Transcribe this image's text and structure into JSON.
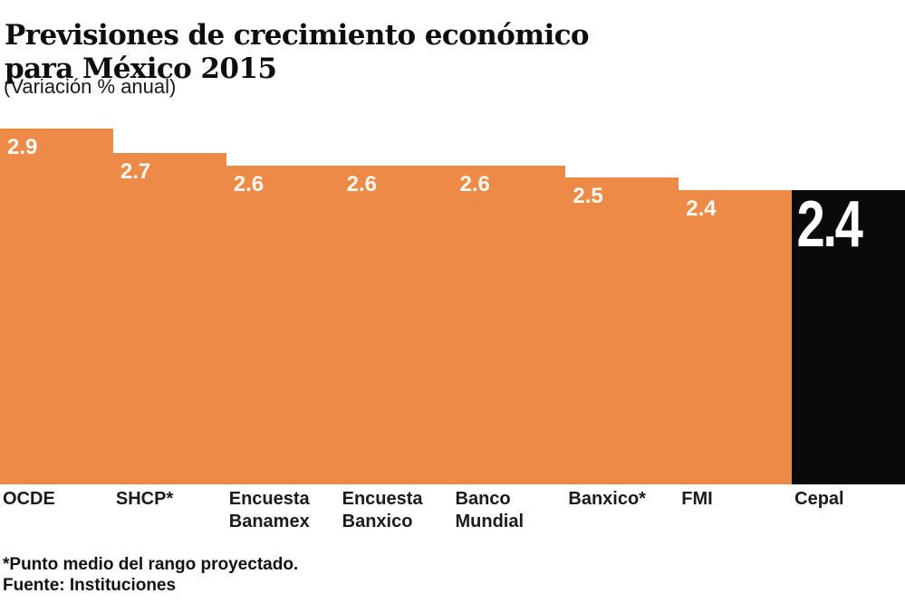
{
  "title": {
    "line1": "Previsiones de crecimiento económico",
    "line2": "para México 2015"
  },
  "subtitle": "(Variación % anual)",
  "chart_data": {
    "type": "bar",
    "title": "Previsiones de crecimiento económico para México 2015",
    "subtitle": "(Variación % anual)",
    "categories": [
      "OCDE",
      "SHCP*",
      "Encuesta Banamex",
      "Encuesta Banxico",
      "Banco Mundial",
      "Banxico*",
      "FMI",
      "Cepal"
    ],
    "values": [
      2.9,
      2.7,
      2.6,
      2.6,
      2.6,
      2.5,
      2.4,
      2.4
    ],
    "xlabel": "",
    "ylabel": "Variación % anual",
    "ylim": [
      0,
      2.9
    ],
    "grid": false,
    "legend": false,
    "value_labels_shown": true,
    "highlighted_category": "Cepal"
  },
  "bars": [
    {
      "id": "ocde",
      "label_lines": [
        "OCDE"
      ],
      "value": 2.9,
      "value_label": "2.9",
      "color": "#EE8A47",
      "big": false
    },
    {
      "id": "shcp",
      "label_lines": [
        "SHCP*"
      ],
      "value": 2.7,
      "value_label": "2.7",
      "color": "#EE8A47",
      "big": false
    },
    {
      "id": "encuesta-banamex",
      "label_lines": [
        "Encuesta",
        "Banamex"
      ],
      "value": 2.6,
      "value_label": "2.6",
      "color": "#EE8A47",
      "big": false
    },
    {
      "id": "encuesta-banxico",
      "label_lines": [
        "Encuesta",
        "Banxico"
      ],
      "value": 2.6,
      "value_label": "2.6",
      "color": "#EE8A47",
      "big": false
    },
    {
      "id": "banco-mundial",
      "label_lines": [
        "Banco",
        "Mundial"
      ],
      "value": 2.6,
      "value_label": "2.6",
      "color": "#EE8A47",
      "big": false
    },
    {
      "id": "banxico",
      "label_lines": [
        "Banxico*"
      ],
      "value": 2.5,
      "value_label": "2.5",
      "color": "#EE8A47",
      "big": false
    },
    {
      "id": "fmi",
      "label_lines": [
        "FMI"
      ],
      "value": 2.4,
      "value_label": "2.4",
      "color": "#EE8A47",
      "big": false
    },
    {
      "id": "cepal",
      "label_lines": [
        "Cepal"
      ],
      "value": 2.4,
      "value_label": "2.4",
      "color": "#0A0A0A",
      "big": true
    }
  ],
  "footnotes": {
    "note": "*Punto medio del rango proyectado.",
    "source": "Fuente: Instituciones"
  },
  "colors": {
    "bar_orange": "#EE8A47",
    "bar_black": "#0A0A0A",
    "value_text": "#FEFAF2",
    "text_dark": "#1A1A1A",
    "background": "#FFFFFF"
  }
}
